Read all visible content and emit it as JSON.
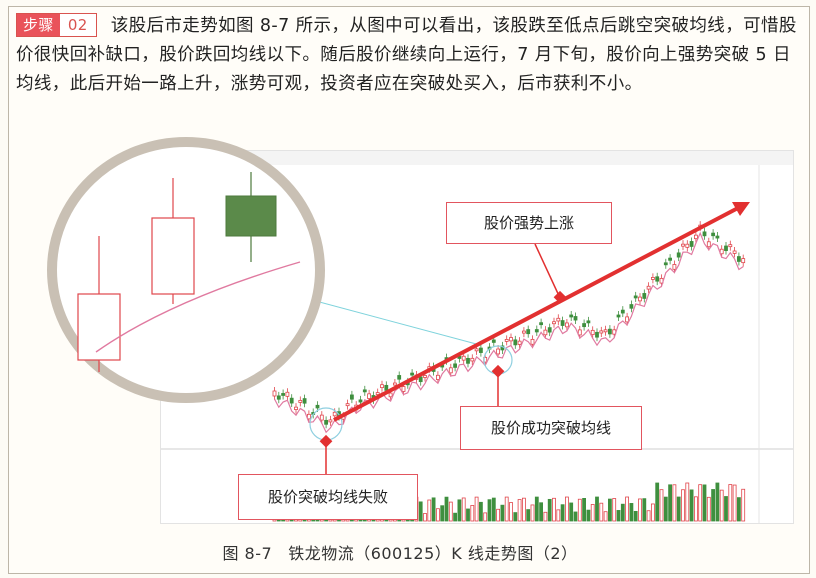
{
  "step": {
    "label": "步骤",
    "number": "02"
  },
  "paragraph": "该股后市走势如图 8-7 所示，从图中可以看出，该股跌至低点后跳空突破均线，可惜股价很快回补缺口，股价跌回均线以下。随后股价继续向上运行，7 月下旬，股价向上强势突破 5 日均线，此后开始一路上升，涨势可观，投资者应在突破处买入，后市获利不小。",
  "callouts": {
    "rise": "股价强势上涨",
    "success": "股价成功突破均线",
    "fail": "股价突破均线失败"
  },
  "caption": {
    "figure": "图 8-7",
    "text": "铁龙物流（600125）K 线走势图（2）"
  },
  "colors": {
    "accent": "#e9535a",
    "up": "#e0454b",
    "down": "#3f8f3f",
    "ma": "#e07aa0",
    "arrow": "#e23030"
  }
}
